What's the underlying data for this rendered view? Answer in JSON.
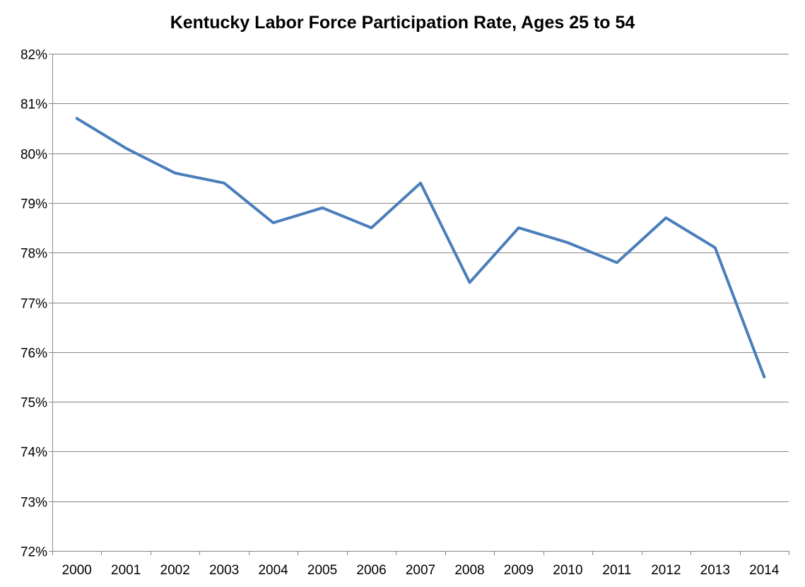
{
  "chart_data": {
    "type": "line",
    "title": "Kentucky Labor Force Participation Rate, Ages 25 to 54",
    "xlabel": "",
    "ylabel": "",
    "categories": [
      "2000",
      "2001",
      "2002",
      "2003",
      "2004",
      "2005",
      "2006",
      "2007",
      "2008",
      "2009",
      "2010",
      "2011",
      "2012",
      "2013",
      "2014"
    ],
    "series": [
      {
        "values": [
          80.7,
          80.1,
          79.6,
          79.4,
          78.6,
          78.9,
          78.5,
          79.4,
          77.4,
          78.5,
          78.2,
          77.8,
          78.7,
          78.1,
          75.5
        ],
        "color": "#4a7ebb"
      }
    ],
    "ylim": [
      72,
      82
    ],
    "yticks": [
      72,
      73,
      74,
      75,
      76,
      77,
      78,
      79,
      80,
      81,
      82
    ],
    "y_tick_format": "percent",
    "grid": "horizontal",
    "legend": "none"
  }
}
